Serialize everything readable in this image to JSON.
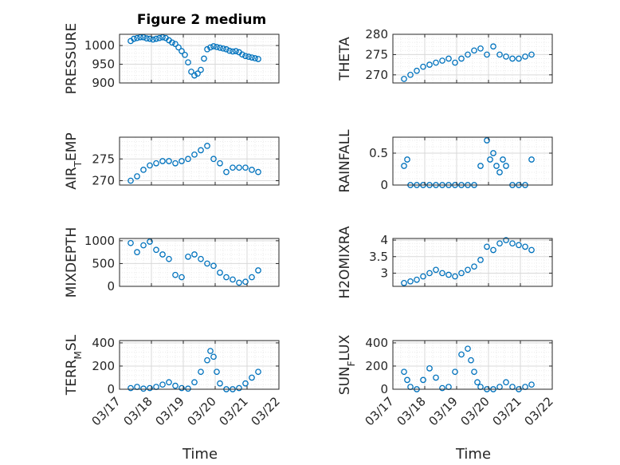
{
  "figure": {
    "title": "Figure 2 medium",
    "xlabel": "Time",
    "xticks": [
      "03/17",
      "03/18",
      "03/19",
      "03/20",
      "03/21",
      "03/22"
    ],
    "marker_color": "#0072BD",
    "grid": true
  },
  "chart_data": [
    {
      "type": "scatter",
      "ylabel": "PRESSURE",
      "ylim": [
        900,
        1030
      ],
      "yticks": [
        "900",
        "950",
        "1000"
      ],
      "yticks_v": [
        900,
        950,
        1000
      ],
      "x": [
        0.0,
        0.1,
        0.2,
        0.3,
        0.4,
        0.5,
        0.6,
        0.7,
        0.8,
        0.9,
        1.0,
        1.1,
        1.2,
        1.3,
        1.4,
        1.5,
        1.6,
        1.7,
        1.8,
        1.9,
        2.0,
        2.1,
        2.2,
        2.3,
        2.4,
        2.5,
        2.6,
        2.7,
        2.8,
        2.9,
        3.0,
        3.1,
        3.2,
        3.3,
        3.4,
        3.5,
        3.6,
        3.7,
        3.8,
        3.9,
        4.0
      ],
      "y": [
        1012,
        1018,
        1020,
        1022,
        1022,
        1019,
        1018,
        1016,
        1018,
        1020,
        1022,
        1020,
        1014,
        1008,
        1004,
        995,
        985,
        975,
        955,
        930,
        920,
        925,
        935,
        965,
        990,
        995,
        998,
        996,
        994,
        992,
        990,
        986,
        984,
        985,
        982,
        976,
        972,
        970,
        968,
        966,
        964
      ]
    },
    {
      "type": "scatter",
      "ylabel": "THETA",
      "ylim": [
        268,
        280
      ],
      "yticks": [
        "270",
        "275",
        "280"
      ],
      "yticks_v": [
        270,
        275,
        280
      ],
      "x": [
        0.0,
        0.2,
        0.4,
        0.6,
        0.8,
        1.0,
        1.2,
        1.4,
        1.6,
        1.8,
        2.0,
        2.2,
        2.4,
        2.6,
        2.8,
        3.0,
        3.2,
        3.4,
        3.6,
        3.8,
        4.0
      ],
      "y": [
        269.0,
        270.0,
        271.0,
        272.0,
        272.5,
        273.0,
        273.5,
        274.0,
        273.0,
        274.0,
        275.0,
        276.0,
        276.5,
        275.0,
        277.0,
        275.0,
        274.5,
        274.0,
        274.0,
        274.5,
        275.0
      ]
    },
    {
      "type": "scatter",
      "ylabel": "AIR_TEMP",
      "ylim": [
        269,
        280
      ],
      "yticks": [
        "270",
        "275"
      ],
      "yticks_v": [
        270,
        275
      ],
      "x": [
        0.0,
        0.2,
        0.4,
        0.6,
        0.8,
        1.0,
        1.2,
        1.4,
        1.6,
        1.8,
        2.0,
        2.2,
        2.4,
        2.6,
        2.8,
        3.0,
        3.2,
        3.4,
        3.6,
        3.8,
        4.0
      ],
      "y": [
        270.0,
        271.0,
        272.5,
        273.5,
        274.0,
        274.5,
        274.5,
        274.0,
        274.5,
        275.0,
        276.0,
        277.0,
        278.0,
        275.0,
        274.0,
        272.0,
        273.0,
        273.0,
        273.0,
        272.5,
        272.0
      ]
    },
    {
      "type": "scatter",
      "ylabel": "RAINFALL",
      "ylim": [
        0,
        0.75
      ],
      "yticks": [
        "0",
        "0.5"
      ],
      "yticks_v": [
        0,
        0.5
      ],
      "x": [
        0.0,
        0.1,
        0.2,
        0.4,
        0.6,
        0.8,
        1.0,
        1.2,
        1.4,
        1.6,
        1.8,
        2.0,
        2.2,
        2.4,
        2.6,
        2.7,
        2.8,
        2.9,
        3.0,
        3.1,
        3.2,
        3.4,
        3.6,
        3.8,
        4.0
      ],
      "y": [
        0.3,
        0.4,
        0.0,
        0.0,
        0.0,
        0.0,
        0.0,
        0.0,
        0.0,
        0.0,
        0.0,
        0.0,
        0.0,
        0.3,
        0.7,
        0.4,
        0.5,
        0.3,
        0.2,
        0.4,
        0.3,
        0.0,
        0.0,
        0.0,
        0.4
      ]
    },
    {
      "type": "scatter",
      "ylabel": "MIXDEPTH",
      "ylim": [
        0,
        1050
      ],
      "yticks": [
        "0",
        "500",
        "1000"
      ],
      "yticks_v": [
        0,
        500,
        1000
      ],
      "x": [
        0.0,
        0.2,
        0.4,
        0.6,
        0.8,
        1.0,
        1.2,
        1.4,
        1.6,
        1.8,
        2.0,
        2.2,
        2.4,
        2.6,
        2.8,
        3.0,
        3.2,
        3.4,
        3.6,
        3.8,
        4.0
      ],
      "y": [
        950,
        750,
        900,
        980,
        800,
        700,
        600,
        250,
        200,
        650,
        700,
        600,
        500,
        450,
        300,
        200,
        150,
        80,
        100,
        200,
        350
      ]
    },
    {
      "type": "scatter",
      "ylabel": "H2OMIXRA",
      "ylim": [
        2.6,
        4.05
      ],
      "yticks": [
        "3",
        "3.5",
        "4"
      ],
      "yticks_v": [
        3,
        3.5,
        4
      ],
      "x": [
        0.0,
        0.2,
        0.4,
        0.6,
        0.8,
        1.0,
        1.2,
        1.4,
        1.6,
        1.8,
        2.0,
        2.2,
        2.4,
        2.6,
        2.8,
        3.0,
        3.2,
        3.4,
        3.6,
        3.8,
        4.0
      ],
      "y": [
        2.7,
        2.75,
        2.8,
        2.9,
        3.0,
        3.1,
        3.0,
        2.95,
        2.9,
        3.0,
        3.1,
        3.2,
        3.4,
        3.8,
        3.7,
        3.9,
        4.0,
        3.9,
        3.85,
        3.8,
        3.7
      ]
    },
    {
      "type": "scatter",
      "ylabel": "TERR_MSL",
      "ylim": [
        0,
        420
      ],
      "yticks": [
        "0",
        "200",
        "400"
      ],
      "yticks_v": [
        0,
        200,
        400
      ],
      "x": [
        0.0,
        0.2,
        0.4,
        0.6,
        0.8,
        1.0,
        1.2,
        1.4,
        1.6,
        1.8,
        2.0,
        2.2,
        2.4,
        2.5,
        2.6,
        2.7,
        2.8,
        3.0,
        3.2,
        3.4,
        3.6,
        3.8,
        4.0
      ],
      "y": [
        10,
        20,
        5,
        10,
        20,
        40,
        60,
        30,
        10,
        5,
        60,
        150,
        250,
        330,
        280,
        150,
        50,
        0,
        0,
        10,
        50,
        100,
        150
      ]
    },
    {
      "type": "scatter",
      "ylabel": "SUN_FLUX",
      "ylim": [
        0,
        420
      ],
      "yticks": [
        "0",
        "200",
        "400"
      ],
      "yticks_v": [
        0,
        200,
        400
      ],
      "x": [
        0.0,
        0.1,
        0.2,
        0.4,
        0.6,
        0.8,
        1.0,
        1.2,
        1.4,
        1.6,
        1.8,
        2.0,
        2.1,
        2.2,
        2.3,
        2.4,
        2.6,
        2.8,
        3.0,
        3.2,
        3.4,
        3.6,
        3.8,
        4.0
      ],
      "y": [
        150,
        80,
        20,
        0,
        80,
        180,
        100,
        10,
        20,
        150,
        300,
        350,
        250,
        150,
        60,
        20,
        0,
        0,
        20,
        60,
        20,
        0,
        20,
        40
      ]
    }
  ]
}
